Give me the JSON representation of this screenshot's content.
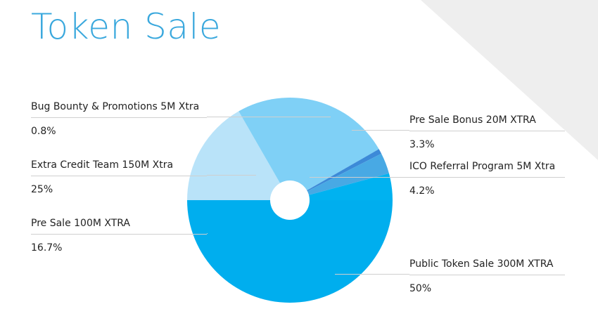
{
  "page": {
    "title": "Token Sale",
    "title_color": "#3aa8dd",
    "decor_color": "#eeeeee"
  },
  "chart_data": {
    "type": "pie",
    "title": "Token Sale",
    "donut_hole": true,
    "start_angle_deg": 0,
    "slices": [
      {
        "label": "Public Token Sale 300M XTRA",
        "pct_label": "50%",
        "value": 50,
        "color": "#00aeee"
      },
      {
        "label": "Pre Sale 100M XTRA",
        "pct_label": "16.7%",
        "value": 16.7,
        "color": "#b9e3f9"
      },
      {
        "label": "Extra Credit Team 150M Xtra",
        "pct_label": "25%",
        "value": 25,
        "color": "#7fd0f6"
      },
      {
        "label": "Bug Bounty & Promotions 5M Xtra",
        "pct_label": "0.8%",
        "value": 0.8,
        "color": "#3c8ad8"
      },
      {
        "label": "Pre Sale Bonus 20M XTRA",
        "pct_label": "3.3%",
        "value": 3.3,
        "color": "#48a9e4"
      },
      {
        "label": "ICO Referral Program 5M Xtra",
        "pct_label": "4.2%",
        "value": 4.2,
        "color": "#00b2f0"
      }
    ]
  },
  "legend": {
    "left": [
      {
        "name": "Bug Bounty & Promotions 5M Xtra",
        "pct": "0.8%"
      },
      {
        "name": "Extra Credit Team 150M Xtra",
        "pct": "25%"
      },
      {
        "name": "Pre Sale 100M XTRA",
        "pct": "16.7%"
      }
    ],
    "right": [
      {
        "name": "Pre Sale Bonus 20M XTRA",
        "pct": "3.3%"
      },
      {
        "name": "ICO Referral Program 5M Xtra",
        "pct": "4.2%"
      },
      {
        "name": "Public Token Sale 300M XTRA",
        "pct": "50%"
      }
    ]
  }
}
